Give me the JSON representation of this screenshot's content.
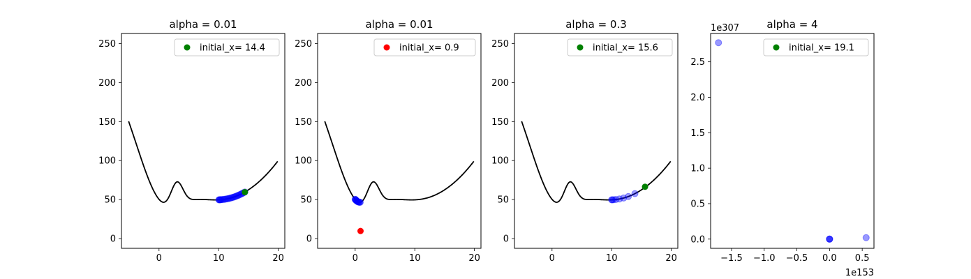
{
  "chart_data": [
    {
      "type": "scatter",
      "title": "alpha = 0.01",
      "curve": {
        "x_range": [
          -5.1,
          19.9
        ],
        "color": "#000000"
      },
      "xlim": [
        -6.3,
        21.1
      ],
      "ylim": [
        -12.5,
        263
      ],
      "xticks": [
        0,
        10,
        20
      ],
      "yticks": [
        0,
        50,
        100,
        150,
        200,
        250
      ],
      "legend": {
        "label": "initial_x= 14.4",
        "color": "#008000",
        "position": "top-right"
      },
      "initial_point": {
        "x": 14.4,
        "y": 59.5,
        "color": "#008000"
      },
      "path_points": {
        "color": "#0000ff",
        "x": [
          14.4,
          14.2,
          14.0,
          13.8,
          13.6,
          13.4,
          13.2,
          13.0,
          12.8,
          12.6,
          12.4,
          12.2,
          12.0,
          11.8,
          11.6,
          11.4,
          11.2,
          11.0,
          10.8,
          10.6,
          10.4,
          10.3,
          10.2,
          10.1,
          10.05
        ]
      }
    },
    {
      "type": "scatter",
      "title": "alpha = 0.01",
      "curve": {
        "x_range": [
          -5.1,
          19.9
        ],
        "color": "#000000"
      },
      "xlim": [
        -6.3,
        21.1
      ],
      "ylim": [
        -12.5,
        263
      ],
      "xticks": [
        0,
        10,
        20
      ],
      "yticks": [
        0,
        50,
        100,
        150,
        200,
        250
      ],
      "legend": {
        "label": "initial_x= 0.9",
        "color": "#ff0000",
        "position": "top-right"
      },
      "initial_point": {
        "x": 0.9,
        "y": 9.7,
        "color": "#ff0000"
      },
      "path_points": {
        "color": "#0000ff",
        "x": [
          0.85,
          0.75,
          0.65,
          0.55,
          0.45,
          0.36,
          0.28,
          0.2,
          0.14,
          0.08,
          0.03,
          0.0
        ]
      }
    },
    {
      "type": "scatter",
      "title": "alpha = 0.3",
      "curve": {
        "x_range": [
          -5.1,
          19.9
        ],
        "color": "#000000"
      },
      "xlim": [
        -6.3,
        21.1
      ],
      "ylim": [
        -12.5,
        263
      ],
      "xticks": [
        0,
        10,
        20
      ],
      "yticks": [
        0,
        50,
        100,
        150,
        200,
        250
      ],
      "legend": {
        "label": "initial_x= 15.6",
        "color": "#008000",
        "position": "top-right"
      },
      "initial_point": {
        "x": 15.6,
        "y": 66.4,
        "color": "#008000"
      },
      "path_points": {
        "color": "#0000ff",
        "x": [
          13.9,
          12.8,
          12.0,
          11.3,
          10.7,
          10.3,
          10.1,
          10.0
        ]
      }
    },
    {
      "type": "scatter",
      "title": "alpha = 4",
      "xlim": [
        -1.82,
        0.68
      ],
      "ylim": [
        -0.13,
        2.9
      ],
      "x_scale_label": "1e153",
      "y_scale_label": "1e307",
      "xticks": [
        -1.5,
        -1.0,
        -0.5,
        0.0,
        0.5
      ],
      "yticks": [
        0.0,
        0.5,
        1.0,
        1.5,
        2.0,
        2.5
      ],
      "legend": {
        "label": "initial_x= 19.1",
        "color": "#008000",
        "position": "top-right"
      },
      "points": [
        {
          "x": -1.7,
          "y": 2.77
        },
        {
          "x": 0.56,
          "y": 0.02
        },
        {
          "x": 0.0,
          "y": 0.0
        },
        {
          "x": 0.0,
          "y": 0.0
        },
        {
          "x": 0.0,
          "y": 0.0
        }
      ],
      "point_color": "#0000ff"
    }
  ]
}
